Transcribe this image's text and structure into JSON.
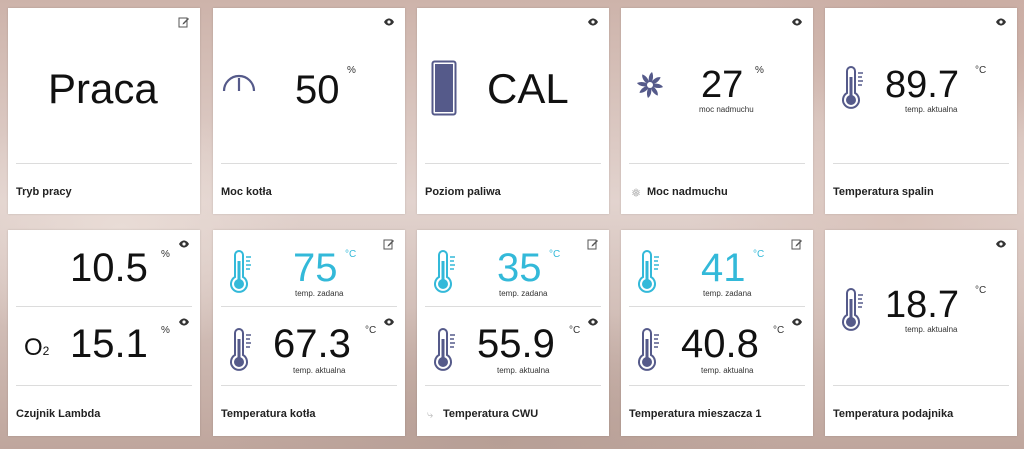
{
  "colors": {
    "accent": "#33b9d9",
    "icon": "#555a8a"
  },
  "tiles": {
    "tryb": {
      "value": "Praca",
      "label": "Tryb pracy"
    },
    "moc": {
      "value": "50",
      "unit": "%",
      "label": "Moc kotła"
    },
    "paliwo": {
      "value": "CAL",
      "label": "Poziom paliwa"
    },
    "nadmuch": {
      "value": "27",
      "unit": "%",
      "sub": "moc nadmuchu",
      "label": "Moc nadmuchu"
    },
    "spaliny": {
      "value": "89.7",
      "unit": "°C",
      "sub": "temp. aktualna",
      "label": "Temperatura spalin"
    },
    "lambda": {
      "top_value": "10.5",
      "top_unit": "%",
      "bottom_value": "15.1",
      "bottom_unit": "%",
      "o2": "O",
      "o2_sub": "2",
      "label": "Czujnik Lambda"
    },
    "kotla": {
      "set_value": "75",
      "set_unit": "°C",
      "set_sub": "temp. zadana",
      "act_value": "67.3",
      "act_unit": "°C",
      "act_sub": "temp. aktualna",
      "label": "Temperatura kotła"
    },
    "cwu": {
      "set_value": "35",
      "set_unit": "°C",
      "set_sub": "temp. zadana",
      "act_value": "55.9",
      "act_unit": "°C",
      "act_sub": "temp. aktualna",
      "label": "Temperatura CWU"
    },
    "mieszacz": {
      "set_value": "41",
      "set_unit": "°C",
      "set_sub": "temp. zadana",
      "act_value": "40.8",
      "act_unit": "°C",
      "act_sub": "temp. aktualna",
      "label": "Temperatura mieszacza 1"
    },
    "podajnik": {
      "value": "18.7",
      "unit": "°C",
      "sub": "temp. aktualna",
      "label": "Temperatura podajnika"
    }
  }
}
